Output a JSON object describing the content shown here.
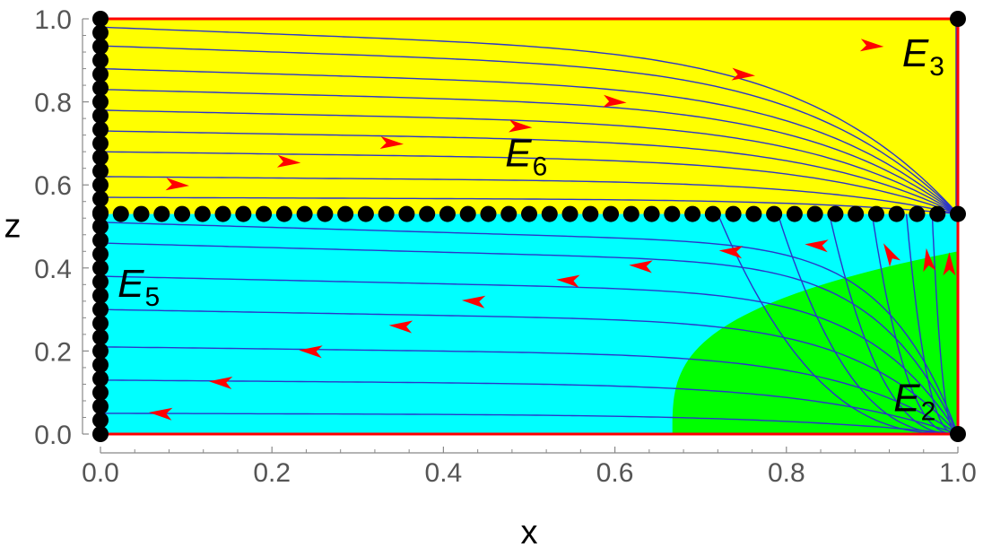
{
  "chart_data": {
    "type": "phase-portrait",
    "xlabel": "x",
    "ylabel": "z",
    "xlim": [
      0,
      1
    ],
    "ylim": [
      0,
      1
    ],
    "x_ticks": [
      "0.0",
      "0.2",
      "0.4",
      "0.6",
      "0.8",
      "1.0"
    ],
    "y_ticks": [
      "0.0",
      "0.2",
      "0.4",
      "0.6",
      "0.8",
      "1.0"
    ],
    "grid": false,
    "z_separatrix": 0.53,
    "colors": {
      "upper_region": "#ffff00",
      "lower_region": "#00ffff",
      "green_region": "#00ff00",
      "streamline": "#2b35c8",
      "arrow": "#ff0000",
      "boundary": "#ff0000",
      "point": "#000000"
    },
    "regions": [
      {
        "color": "upper",
        "z_range": [
          0.53,
          1.0
        ]
      },
      {
        "color": "lower",
        "z_range": [
          0.0,
          0.53
        ]
      },
      {
        "color": "green",
        "x_start": 0.667,
        "z_max_at_x1": 0.44
      }
    ],
    "equilibria": [
      {
        "label": "E",
        "sub": "2",
        "x": 1.0,
        "z": 0.0
      },
      {
        "label": "E",
        "sub": "3",
        "x": 1.0,
        "z": 1.0
      },
      {
        "label": "E",
        "sub": "5",
        "x": 0.0,
        "z": 0.37
      },
      {
        "label": "E",
        "sub": "6",
        "x": 0.5,
        "z": 0.53
      }
    ],
    "upper_streamlines_z0": [
      0.98,
      0.935,
      0.88,
      0.83,
      0.78,
      0.73,
      0.68,
      0.62,
      0.57
    ],
    "lower_streamlines_z0": [
      0.05,
      0.13,
      0.21,
      0.3,
      0.38,
      0.46,
      0.51
    ],
    "upper_arrows": [
      {
        "x": 0.9,
        "z": 0.935
      },
      {
        "x": 0.75,
        "z": 0.865
      },
      {
        "x": 0.6,
        "z": 0.8
      },
      {
        "x": 0.49,
        "z": 0.74
      },
      {
        "x": 0.34,
        "z": 0.7
      },
      {
        "x": 0.22,
        "z": 0.655
      },
      {
        "x": 0.09,
        "z": 0.6
      }
    ],
    "lower_arrows": [
      {
        "x": 0.07,
        "z": 0.05
      },
      {
        "x": 0.14,
        "z": 0.125
      },
      {
        "x": 0.245,
        "z": 0.2
      },
      {
        "x": 0.35,
        "z": 0.26
      },
      {
        "x": 0.435,
        "z": 0.32
      },
      {
        "x": 0.545,
        "z": 0.37
      },
      {
        "x": 0.63,
        "z": 0.405
      },
      {
        "x": 0.735,
        "z": 0.44
      },
      {
        "x": 0.835,
        "z": 0.455
      },
      {
        "x": 0.92,
        "z": 0.435
      },
      {
        "x": 0.965,
        "z": 0.42
      },
      {
        "x": 0.99,
        "z": 0.41
      }
    ]
  }
}
